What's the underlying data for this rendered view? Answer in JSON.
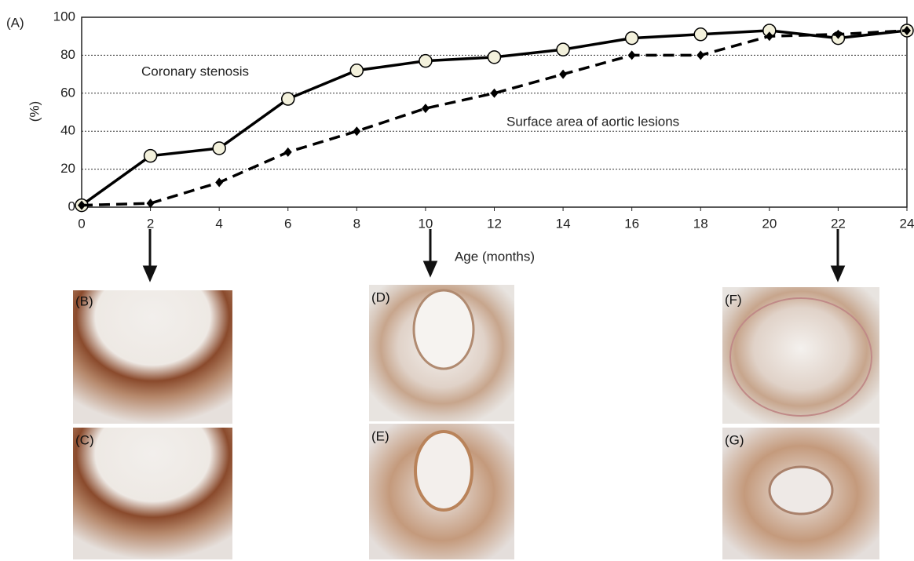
{
  "chart_data": {
    "type": "line",
    "panel_label": "(A)",
    "ylabel": "(%)",
    "xlabel": "Age (months)",
    "annotations": [
      "Coronary stenosis",
      "Surface area of aortic lesions"
    ],
    "x": [
      0,
      2,
      4,
      6,
      8,
      10,
      12,
      14,
      16,
      18,
      20,
      22,
      24
    ],
    "series": [
      {
        "name": "Coronary stenosis",
        "color": "#000000",
        "marker": "circle",
        "dashed": false,
        "values": [
          1,
          27,
          31,
          57,
          72,
          77,
          79,
          83,
          89,
          91,
          93,
          89,
          93
        ]
      },
      {
        "name": "Surface area of aortic lesions",
        "color": "#000000",
        "marker": "diamond",
        "dashed": true,
        "values": [
          1,
          2,
          13,
          29,
          40,
          52,
          60,
          70,
          80,
          80,
          90,
          91,
          93
        ]
      }
    ],
    "xlim": [
      0,
      24
    ],
    "xticks": [
      0,
      2,
      4,
      6,
      8,
      10,
      12,
      14,
      16,
      18,
      20,
      22,
      24
    ],
    "ylim": [
      0,
      100
    ],
    "yticks": [
      0,
      20,
      40,
      60,
      80,
      100
    ],
    "grid": true
  },
  "panels": [
    "(B)",
    "(C)",
    "(D)",
    "(E)",
    "(F)",
    "(G)"
  ]
}
